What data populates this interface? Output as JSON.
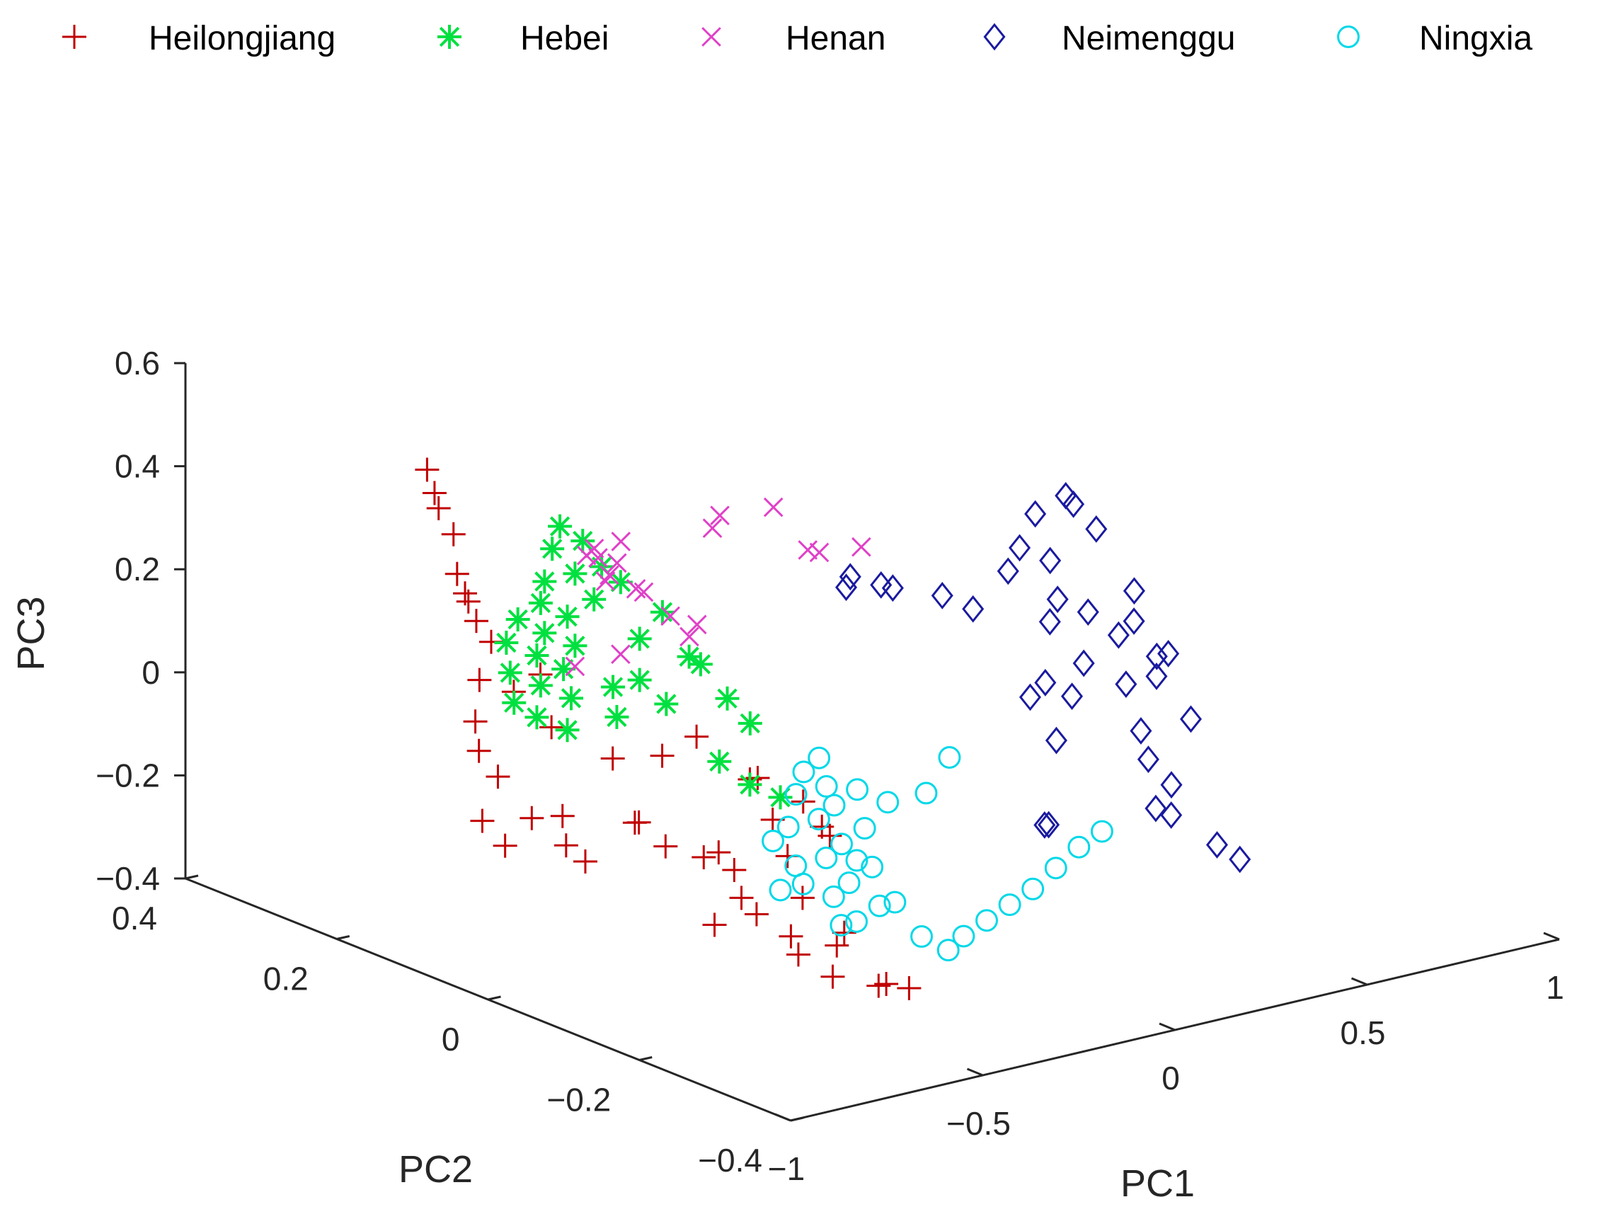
{
  "chart_data": {
    "type": "scatter",
    "projection": "3d",
    "title": "",
    "axes": {
      "x": {
        "label": "PC1",
        "lim": [
          -1,
          1
        ],
        "ticks": [
          -1,
          -0.5,
          0,
          0.5,
          1
        ],
        "tick_labels": [
          "−1",
          "−0.5",
          "0",
          "0.5",
          "1"
        ]
      },
      "y": {
        "label": "PC2",
        "lim": [
          -0.4,
          0.4
        ],
        "ticks": [
          -0.4,
          -0.2,
          0,
          0.2,
          0.4
        ],
        "tick_labels": [
          "−0.4",
          "−0.2",
          "0",
          "0.2",
          "0.4"
        ]
      },
      "z": {
        "label": "PC3",
        "lim": [
          -0.4,
          0.6
        ],
        "ticks": [
          -0.4,
          -0.2,
          0,
          0.2,
          0.4,
          0.6
        ],
        "tick_labels": [
          "−0.4",
          "−0.2",
          "0",
          "0.2",
          "0.4",
          "0.6"
        ]
      }
    },
    "grid": false,
    "legend_position": "top",
    "series": [
      {
        "name": "Heilongjiang",
        "marker": "plus",
        "color": "#c00000",
        "points": [
          [
            -0.45,
            0.36,
            0.32
          ],
          [
            -0.47,
            0.34,
            0.29
          ],
          [
            -0.42,
            0.36,
            0.24
          ],
          [
            -0.46,
            0.32,
            0.22
          ],
          [
            -0.49,
            0.3,
            0.16
          ],
          [
            -0.43,
            0.32,
            0.1
          ],
          [
            -0.5,
            0.28,
            0.12
          ],
          [
            -0.48,
            0.26,
            0.05
          ],
          [
            -0.44,
            0.3,
            0.06
          ],
          [
            -0.55,
            0.24,
            0.0
          ],
          [
            -0.5,
            0.22,
            -0.02
          ],
          [
            -0.47,
            0.2,
            0.02
          ],
          [
            -0.6,
            0.22,
            -0.06
          ],
          [
            -0.63,
            0.2,
            -0.1
          ],
          [
            -0.62,
            0.18,
            -0.14
          ],
          [
            -0.7,
            0.16,
            -0.2
          ],
          [
            -0.68,
            0.14,
            -0.24
          ],
          [
            -0.65,
            0.12,
            -0.18
          ],
          [
            -0.6,
            0.1,
            -0.23
          ],
          [
            -0.57,
            0.12,
            -0.19
          ],
          [
            -0.55,
            0.1,
            -0.27
          ],
          [
            -0.5,
            0.06,
            -0.18
          ],
          [
            -0.45,
            0.08,
            -0.2
          ],
          [
            -0.42,
            0.06,
            -0.24
          ],
          [
            -0.36,
            0.04,
            -0.26
          ],
          [
            -0.32,
            0.02,
            -0.28
          ],
          [
            -0.4,
            0.0,
            -0.22
          ],
          [
            -0.45,
            -0.02,
            -0.34
          ],
          [
            -0.38,
            -0.04,
            -0.32
          ],
          [
            -0.33,
            -0.06,
            -0.36
          ],
          [
            -0.28,
            -0.05,
            -0.3
          ],
          [
            -0.25,
            -0.08,
            -0.38
          ],
          [
            -0.3,
            -0.1,
            -0.42
          ],
          [
            -0.22,
            -0.12,
            -0.44
          ],
          [
            -0.2,
            -0.12,
            -0.44
          ],
          [
            -0.18,
            -0.14,
            -0.44
          ],
          [
            -0.35,
            -0.08,
            -0.38
          ],
          [
            -0.26,
            -0.02,
            -0.24
          ],
          [
            -0.22,
            0.02,
            -0.2
          ],
          [
            -0.2,
            0.05,
            -0.14
          ],
          [
            -0.24,
            0.04,
            -0.13
          ],
          [
            -0.18,
            0.0,
            -0.16
          ],
          [
            -0.15,
            -0.02,
            -0.22
          ],
          [
            -0.21,
            -0.04,
            -0.18
          ],
          [
            -0.4,
            0.14,
            -0.12
          ],
          [
            -0.35,
            0.1,
            -0.1
          ],
          [
            -0.3,
            0.08,
            -0.06
          ],
          [
            -0.52,
            0.16,
            -0.05
          ],
          [
            -0.38,
            -0.02,
            -0.3
          ],
          [
            -0.27,
            -0.1,
            -0.34
          ]
        ]
      },
      {
        "name": "Hebei",
        "marker": "asterisk",
        "color": "#00e040",
        "points": [
          [
            -0.38,
            0.22,
            0.28
          ],
          [
            -0.36,
            0.2,
            0.26
          ],
          [
            -0.4,
            0.22,
            0.24
          ],
          [
            -0.35,
            0.18,
            0.22
          ],
          [
            -0.38,
            0.2,
            0.2
          ],
          [
            -0.42,
            0.22,
            0.18
          ],
          [
            -0.37,
            0.18,
            0.16
          ],
          [
            -0.43,
            0.22,
            0.14
          ],
          [
            -0.4,
            0.2,
            0.12
          ],
          [
            -0.45,
            0.24,
            0.1
          ],
          [
            -0.42,
            0.22,
            0.08
          ],
          [
            -0.38,
            0.2,
            0.06
          ],
          [
            -0.44,
            0.22,
            0.04
          ],
          [
            -0.41,
            0.2,
            0.02
          ],
          [
            -0.47,
            0.24,
            0.0
          ],
          [
            -0.43,
            0.22,
            -0.02
          ],
          [
            -0.39,
            0.2,
            -0.04
          ],
          [
            -0.46,
            0.24,
            -0.06
          ],
          [
            -0.48,
            0.24,
            0.06
          ],
          [
            -0.36,
            0.16,
            0.0
          ],
          [
            -0.33,
            0.14,
            0.02
          ],
          [
            -0.35,
            0.16,
            -0.06
          ],
          [
            -0.3,
            0.12,
            -0.02
          ],
          [
            -0.25,
            0.1,
            0.06
          ],
          [
            -0.22,
            0.08,
            0.0
          ],
          [
            -0.2,
            0.06,
            -0.04
          ],
          [
            -0.28,
            0.06,
            -0.1
          ],
          [
            -0.24,
            0.04,
            -0.14
          ],
          [
            -0.2,
            0.02,
            -0.16
          ],
          [
            -0.33,
            0.14,
            0.1
          ],
          [
            -0.31,
            0.12,
            0.16
          ],
          [
            -0.34,
            0.16,
            0.2
          ],
          [
            -0.4,
            0.2,
            -0.1
          ],
          [
            -0.44,
            0.22,
            -0.08
          ],
          [
            -0.28,
            0.1,
            0.08
          ]
        ]
      },
      {
        "name": "Henan",
        "marker": "x",
        "color": "#e040c8",
        "points": [
          [
            -0.35,
            0.2,
            0.23
          ],
          [
            -0.33,
            0.18,
            0.2
          ],
          [
            -0.34,
            0.18,
            0.19
          ],
          [
            -0.32,
            0.2,
            0.22
          ],
          [
            -0.3,
            0.16,
            0.18
          ],
          [
            -0.33,
            0.2,
            0.24
          ],
          [
            -0.31,
            0.18,
            0.22
          ],
          [
            -0.28,
            0.16,
            0.17
          ],
          [
            -0.25,
            0.14,
            0.13
          ],
          [
            -0.24,
            0.12,
            0.1
          ],
          [
            -0.22,
            0.12,
            0.12
          ],
          [
            -0.3,
            0.18,
            0.26
          ],
          [
            -0.2,
            0.1,
            0.34
          ],
          [
            -0.18,
            0.12,
            0.3
          ],
          [
            -0.1,
            0.08,
            0.35
          ],
          [
            -0.05,
            0.06,
            0.27
          ],
          [
            -0.02,
            0.06,
            0.26
          ],
          [
            0.05,
            0.04,
            0.27
          ],
          [
            -0.38,
            0.2,
            0.02
          ],
          [
            -0.34,
            0.16,
            0.06
          ]
        ]
      },
      {
        "name": "Neimenggu",
        "marker": "diamond",
        "color": "#1a1aa0",
        "points": [
          [
            0.05,
            0.06,
            0.18
          ],
          [
            0.1,
            0.08,
            0.18
          ],
          [
            0.18,
            0.08,
            0.15
          ],
          [
            0.25,
            0.1,
            0.12
          ],
          [
            0.3,
            0.06,
            0.12
          ],
          [
            0.38,
            0.06,
            0.08
          ],
          [
            0.45,
            0.0,
            -0.04
          ],
          [
            0.4,
            -0.04,
            -0.12
          ],
          [
            0.45,
            0.02,
            -0.08
          ],
          [
            0.48,
            -0.02,
            -0.06
          ],
          [
            0.33,
            -0.06,
            -0.26
          ],
          [
            0.38,
            -0.04,
            -0.28
          ],
          [
            0.55,
            0.1,
            0.1
          ],
          [
            0.58,
            0.1,
            0.14
          ],
          [
            0.62,
            0.08,
            0.12
          ],
          [
            0.66,
            0.12,
            0.18
          ],
          [
            0.7,
            0.1,
            0.22
          ],
          [
            0.72,
            0.1,
            0.2
          ],
          [
            0.74,
            0.08,
            0.16
          ],
          [
            0.6,
            0.06,
            0.06
          ],
          [
            0.64,
            0.04,
            0.04
          ],
          [
            0.68,
            0.02,
            0.0
          ],
          [
            0.72,
            0.02,
            0.02
          ],
          [
            0.76,
            0.04,
            0.06
          ],
          [
            0.74,
            0.0,
            -0.04
          ],
          [
            0.7,
            -0.02,
            -0.06
          ],
          [
            0.66,
            0.0,
            -0.08
          ],
          [
            0.62,
            -0.04,
            -0.14
          ],
          [
            0.6,
            -0.06,
            -0.18
          ],
          [
            0.58,
            -0.08,
            -0.26
          ],
          [
            0.62,
            -0.08,
            -0.28
          ],
          [
            0.66,
            -0.06,
            -0.24
          ],
          [
            0.7,
            -0.1,
            -0.34
          ],
          [
            0.72,
            -0.12,
            -0.36
          ],
          [
            0.75,
            -0.04,
            -0.14
          ],
          [
            0.77,
            0.0,
            -0.04
          ],
          [
            0.55,
            0.0,
            -0.02
          ],
          [
            0.58,
            0.06,
            0.02
          ]
        ]
      },
      {
        "name": "Ningxia",
        "marker": "circle",
        "color": "#00d8e8",
        "points": [
          [
            -0.1,
            0.04,
            -0.14
          ],
          [
            -0.08,
            0.02,
            -0.16
          ],
          [
            -0.12,
            0.04,
            -0.18
          ],
          [
            -0.06,
            0.02,
            -0.2
          ],
          [
            -0.1,
            0.02,
            -0.22
          ],
          [
            -0.14,
            0.04,
            -0.24
          ],
          [
            -0.08,
            0.0,
            -0.26
          ],
          [
            -0.12,
            0.0,
            -0.28
          ],
          [
            -0.16,
            0.02,
            -0.3
          ],
          [
            -0.1,
            -0.02,
            -0.32
          ],
          [
            -0.14,
            -0.02,
            -0.34
          ],
          [
            -0.18,
            0.0,
            -0.32
          ],
          [
            -0.2,
            0.02,
            -0.34
          ],
          [
            -0.16,
            -0.04,
            -0.38
          ],
          [
            -0.12,
            -0.04,
            -0.38
          ],
          [
            -0.06,
            -0.04,
            -0.36
          ],
          [
            -0.04,
            -0.02,
            -0.3
          ],
          [
            -0.02,
            0.0,
            -0.24
          ],
          [
            0.0,
            0.02,
            -0.18
          ],
          [
            0.04,
            0.0,
            -0.2
          ],
          [
            -0.02,
            -0.04,
            -0.36
          ],
          [
            0.01,
            -0.06,
            -0.42
          ],
          [
            0.04,
            -0.08,
            -0.44
          ],
          [
            0.08,
            -0.08,
            -0.42
          ],
          [
            0.14,
            -0.08,
            -0.4
          ],
          [
            0.2,
            -0.08,
            -0.38
          ],
          [
            0.26,
            -0.08,
            -0.36
          ],
          [
            0.32,
            -0.08,
            -0.33
          ],
          [
            0.38,
            -0.08,
            -0.3
          ],
          [
            0.44,
            -0.08,
            -0.28
          ],
          [
            0.14,
            0.0,
            -0.2
          ],
          [
            0.24,
            0.02,
            -0.16
          ],
          [
            -0.06,
            0.04,
            -0.12
          ],
          [
            -0.18,
            0.04,
            -0.26
          ],
          [
            -0.08,
            -0.02,
            -0.28
          ]
        ]
      }
    ]
  }
}
